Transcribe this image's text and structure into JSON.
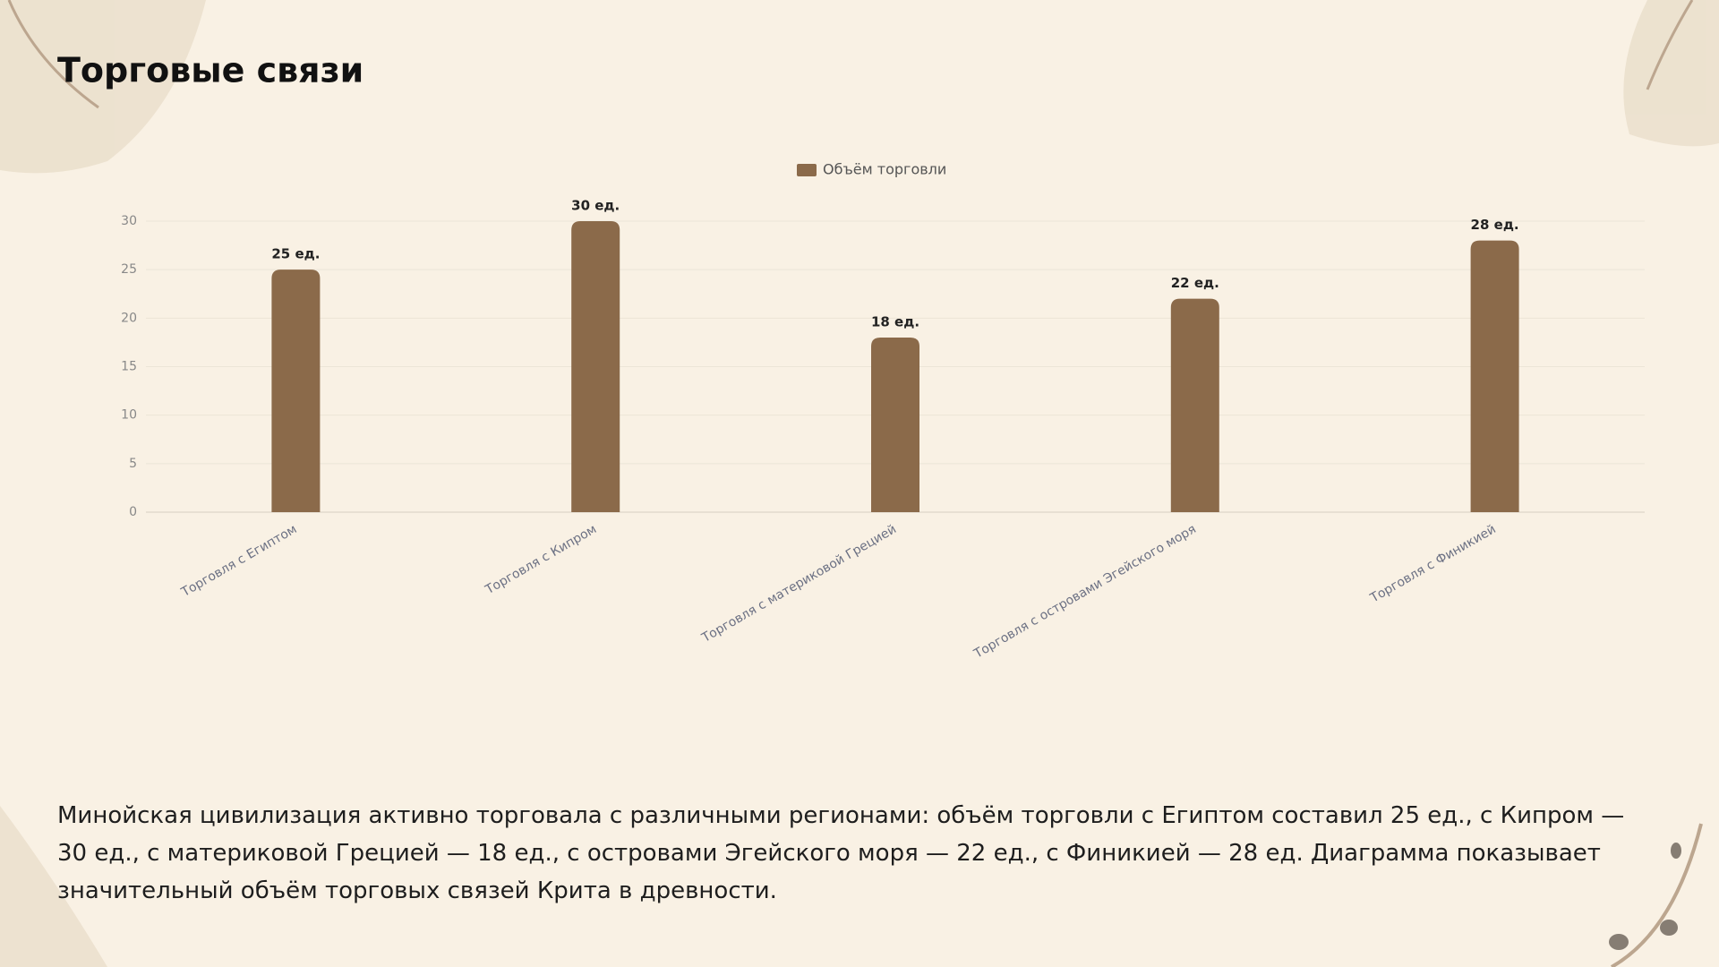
{
  "chart_data": {
    "type": "bar",
    "title": "Торговые связи",
    "categories": [
      "Торговля с Египтом",
      "Торговля с Кипром",
      "Торговля с материковой Грецией",
      "Торговля с островами Эгейского моря",
      "Торговля с Финикией"
    ],
    "series": [
      {
        "name": "Объём торговли",
        "color": "#8b6a4a",
        "values": [
          25,
          30,
          18,
          22,
          28
        ],
        "value_labels": [
          "25 ед.",
          "30 ед.",
          "18 ед.",
          "22 ед.",
          "28 ед."
        ]
      }
    ],
    "ylim": [
      0,
      30
    ],
    "yticks": [
      0,
      5,
      10,
      15,
      20,
      25,
      30
    ],
    "grid": true,
    "legend": "top"
  },
  "text": "Минойская цивилизация активно торговала с различными регионами: объём торговли с Египтом составил 25 ед., с Кипром — 30 ед., с материковой Грецией — 18 ед., с островами Эгейского моря — 22 ед., с Финикией — 28 ед. Диаграмма показывает значительный объём торговых связей Крита в древности."
}
